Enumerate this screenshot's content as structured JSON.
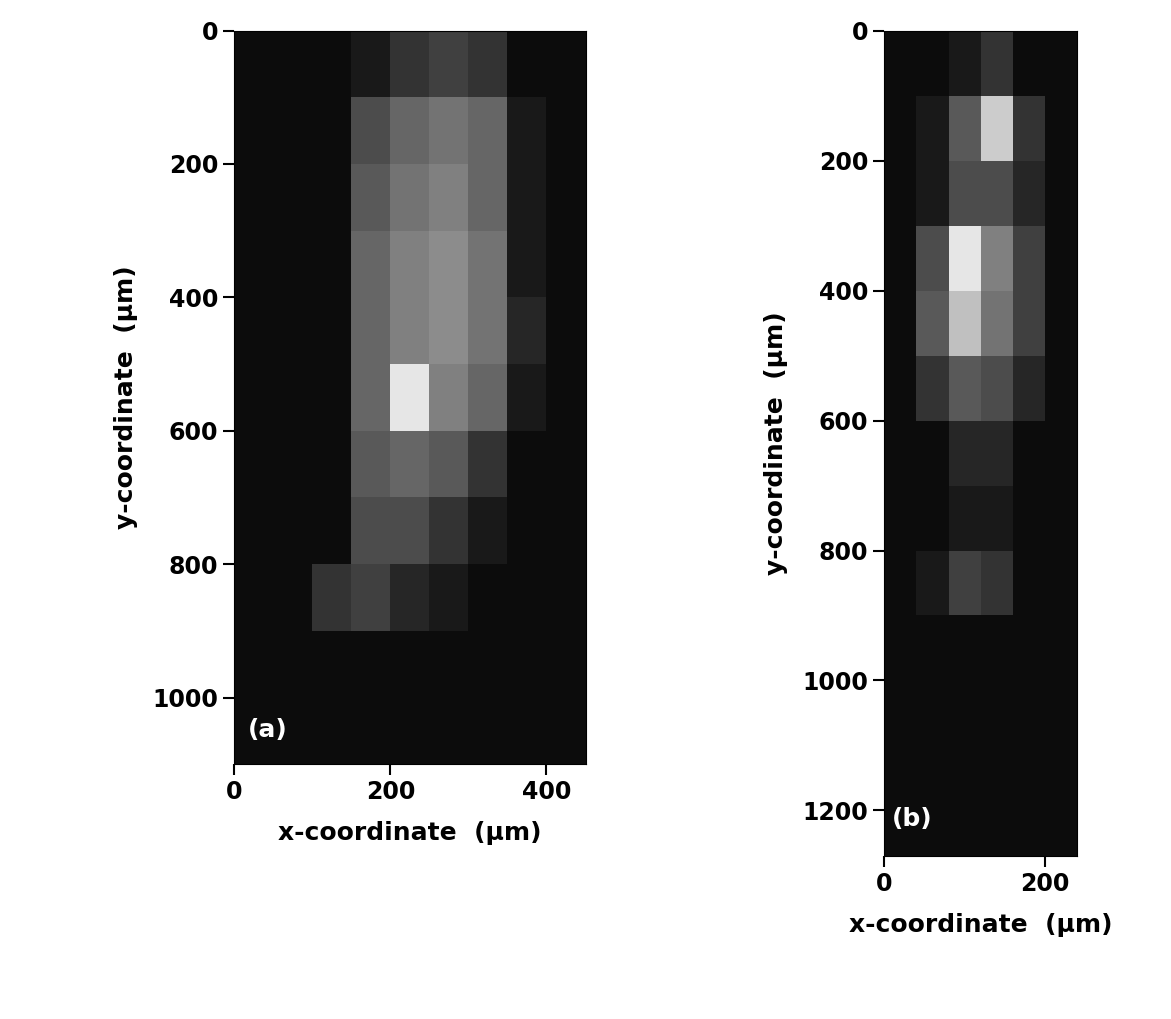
{
  "chart_data": [
    {
      "type": "heatmap",
      "annotation": "(a)",
      "x_label": "x-coordinate  (µm)",
      "y_label": "y-coordinate  (µm)",
      "xlim": [
        0,
        450
      ],
      "ylim": [
        1100,
        0
      ],
      "xticks": [
        0,
        200,
        400
      ],
      "yticks": [
        0,
        200,
        400,
        600,
        800,
        1000
      ],
      "x_edges": [
        0,
        50,
        100,
        150,
        200,
        250,
        300,
        350,
        400,
        450
      ],
      "y_edges": [
        0,
        100,
        200,
        300,
        400,
        500,
        600,
        700,
        800,
        900,
        1000,
        1100
      ],
      "clim": [
        0,
        1
      ],
      "cells": [
        [
          0.05,
          0.05,
          0.05,
          0.1,
          0.2,
          0.25,
          0.2,
          0.05,
          0.05
        ],
        [
          0.05,
          0.05,
          0.05,
          0.3,
          0.4,
          0.45,
          0.4,
          0.1,
          0.05
        ],
        [
          0.05,
          0.05,
          0.05,
          0.35,
          0.45,
          0.5,
          0.4,
          0.1,
          0.05
        ],
        [
          0.05,
          0.05,
          0.05,
          0.4,
          0.5,
          0.55,
          0.45,
          0.1,
          0.05
        ],
        [
          0.05,
          0.05,
          0.05,
          0.4,
          0.5,
          0.55,
          0.45,
          0.15,
          0.05
        ],
        [
          0.05,
          0.05,
          0.05,
          0.4,
          0.9,
          0.5,
          0.4,
          0.1,
          0.05
        ],
        [
          0.05,
          0.05,
          0.05,
          0.35,
          0.4,
          0.35,
          0.2,
          0.05,
          0.05
        ],
        [
          0.05,
          0.05,
          0.05,
          0.3,
          0.3,
          0.2,
          0.1,
          0.05,
          0.05
        ],
        [
          0.05,
          0.05,
          0.2,
          0.25,
          0.15,
          0.1,
          0.05,
          0.05,
          0.05
        ],
        [
          0.05,
          0.05,
          0.05,
          0.05,
          0.05,
          0.05,
          0.05,
          0.05,
          0.05
        ],
        [
          0.05,
          0.05,
          0.05,
          0.05,
          0.05,
          0.05,
          0.05,
          0.05,
          0.05
        ]
      ]
    },
    {
      "type": "heatmap",
      "annotation": "(b)",
      "x_label": "x-coordinate  (µm)",
      "y_label": "y-coordinate  (µm)",
      "xlim": [
        0,
        240
      ],
      "ylim": [
        1270,
        0
      ],
      "xticks": [
        0,
        200
      ],
      "yticks": [
        0,
        200,
        400,
        600,
        800,
        1000,
        1200
      ],
      "x_edges": [
        0,
        40,
        80,
        120,
        160,
        200,
        240
      ],
      "y_edges": [
        0,
        100,
        200,
        300,
        400,
        500,
        600,
        700,
        800,
        900,
        1000,
        1100,
        1200,
        1270
      ],
      "clim": [
        0,
        1
      ],
      "cells": [
        [
          0.05,
          0.05,
          0.1,
          0.2,
          0.05,
          0.05
        ],
        [
          0.05,
          0.1,
          0.35,
          0.8,
          0.2,
          0.05
        ],
        [
          0.05,
          0.1,
          0.3,
          0.3,
          0.15,
          0.05
        ],
        [
          0.05,
          0.3,
          0.9,
          0.5,
          0.25,
          0.05
        ],
        [
          0.05,
          0.35,
          0.75,
          0.45,
          0.25,
          0.05
        ],
        [
          0.05,
          0.2,
          0.35,
          0.3,
          0.15,
          0.05
        ],
        [
          0.05,
          0.05,
          0.15,
          0.15,
          0.05,
          0.05
        ],
        [
          0.05,
          0.05,
          0.1,
          0.1,
          0.05,
          0.05
        ],
        [
          0.05,
          0.1,
          0.25,
          0.2,
          0.05,
          0.05
        ],
        [
          0.05,
          0.05,
          0.05,
          0.05,
          0.05,
          0.05
        ],
        [
          0.05,
          0.05,
          0.05,
          0.05,
          0.05,
          0.05
        ],
        [
          0.05,
          0.05,
          0.05,
          0.05,
          0.05,
          0.05
        ],
        [
          0.05,
          0.05,
          0.05,
          0.05,
          0.05,
          0.05
        ]
      ]
    }
  ]
}
